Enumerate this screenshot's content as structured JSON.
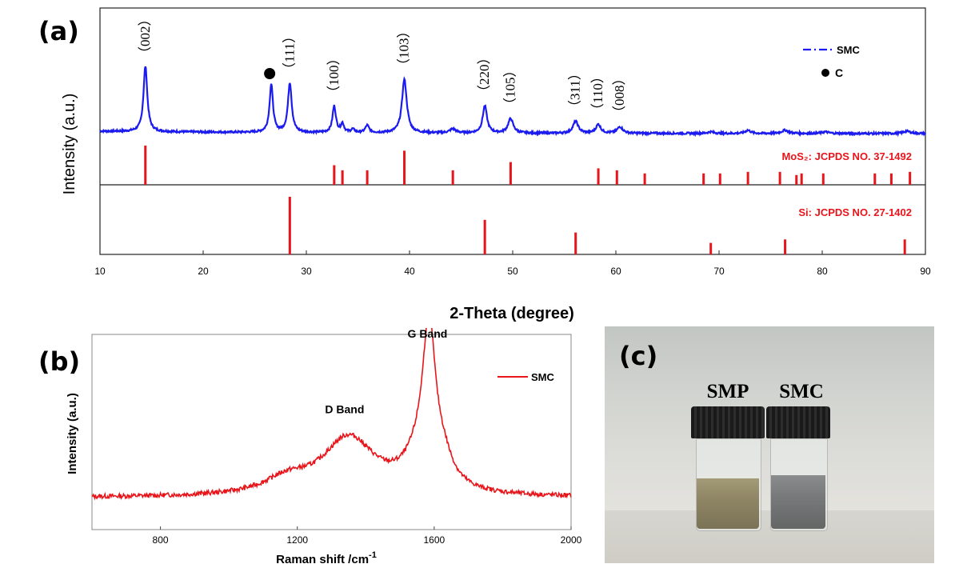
{
  "panels": {
    "a": {
      "letter": "(a)"
    },
    "b": {
      "letter": "(b)"
    },
    "c": {
      "letter": "(c)"
    }
  },
  "chart_data": [
    {
      "id": "xrd",
      "type": "line",
      "xlabel": "2-Theta (degree)",
      "ylabel": "Intensity (a.u.)",
      "xlim": [
        10,
        90
      ],
      "xticks": [
        10,
        20,
        30,
        40,
        50,
        60,
        70,
        80,
        90
      ],
      "grid": false,
      "legend_position": "top-right",
      "legend": [
        {
          "label": "SMC",
          "marker": "dash-dot line",
          "color": "#1b1bf0"
        },
        {
          "label": "C",
          "marker": "filled circle",
          "color": "#000000"
        }
      ],
      "series": [
        {
          "name": "SMC",
          "color": "#1b1bf0",
          "baseline": 3,
          "peaks": [
            {
              "x": 14.4,
              "h": 82,
              "w": 0.22
            },
            {
              "x": 26.6,
              "h": 60,
              "w": 0.2
            },
            {
              "x": 28.4,
              "h": 62,
              "w": 0.22
            },
            {
              "x": 32.7,
              "h": 33,
              "w": 0.2
            },
            {
              "x": 33.5,
              "h": 11,
              "w": 0.18
            },
            {
              "x": 34.5,
              "h": 4,
              "w": 0.2
            },
            {
              "x": 35.9,
              "h": 9,
              "w": 0.22
            },
            {
              "x": 39.5,
              "h": 67,
              "w": 0.28
            },
            {
              "x": 44.2,
              "h": 5,
              "w": 0.35
            },
            {
              "x": 47.3,
              "h": 34,
              "w": 0.25
            },
            {
              "x": 49.8,
              "h": 18,
              "w": 0.3
            },
            {
              "x": 56.1,
              "h": 15,
              "w": 0.3
            },
            {
              "x": 58.3,
              "h": 11,
              "w": 0.28
            },
            {
              "x": 60.4,
              "h": 8,
              "w": 0.32
            },
            {
              "x": 69.2,
              "h": 2,
              "w": 0.35
            },
            {
              "x": 72.8,
              "h": 4,
              "w": 0.3
            },
            {
              "x": 76.4,
              "h": 4,
              "w": 0.4
            },
            {
              "x": 80.3,
              "h": 2,
              "w": 0.4
            },
            {
              "x": 88.2,
              "h": 3,
              "w": 0.4
            }
          ]
        }
      ],
      "peak_labels": [
        {
          "x": 14.4,
          "y": 82,
          "text": "（002）"
        },
        {
          "x": 28.4,
          "y": 62,
          "text": "（111）"
        },
        {
          "x": 32.7,
          "y": 33,
          "text": "（100）"
        },
        {
          "x": 39.5,
          "y": 67,
          "text": "（103）"
        },
        {
          "x": 47.3,
          "y": 34,
          "text": "（220）"
        },
        {
          "x": 49.8,
          "y": 18,
          "text": "（105）"
        },
        {
          "x": 56.1,
          "y": 15,
          "text": "（311）"
        },
        {
          "x": 58.3,
          "y": 11,
          "text": "（110）"
        },
        {
          "x": 60.4,
          "y": 8,
          "text": "（008）"
        }
      ],
      "carbon_marker": {
        "x": 26.6,
        "y": 60
      },
      "reference_patterns": [
        {
          "label": "MoS₂: JCPDS NO. 37-1492",
          "color": "#e8151b",
          "lines": [
            {
              "x": 14.4,
              "i": 1.0
            },
            {
              "x": 32.7,
              "i": 0.5
            },
            {
              "x": 33.5,
              "i": 0.37
            },
            {
              "x": 35.9,
              "i": 0.37
            },
            {
              "x": 39.5,
              "i": 0.87
            },
            {
              "x": 44.2,
              "i": 0.37
            },
            {
              "x": 49.8,
              "i": 0.58
            },
            {
              "x": 58.3,
              "i": 0.42
            },
            {
              "x": 60.1,
              "i": 0.37
            },
            {
              "x": 62.8,
              "i": 0.29
            },
            {
              "x": 68.5,
              "i": 0.29
            },
            {
              "x": 70.1,
              "i": 0.29
            },
            {
              "x": 72.8,
              "i": 0.33
            },
            {
              "x": 75.9,
              "i": 0.33
            },
            {
              "x": 77.5,
              "i": 0.25
            },
            {
              "x": 78.0,
              "i": 0.29
            },
            {
              "x": 80.1,
              "i": 0.29
            },
            {
              "x": 85.1,
              "i": 0.29
            },
            {
              "x": 86.7,
              "i": 0.29
            },
            {
              "x": 88.5,
              "i": 0.33
            }
          ]
        },
        {
          "label": "Si: JCPDS NO. 27-1402",
          "color": "#e8151b",
          "lines": [
            {
              "x": 28.4,
              "i": 1.0
            },
            {
              "x": 47.3,
              "i": 0.6
            },
            {
              "x": 56.1,
              "i": 0.38
            },
            {
              "x": 69.2,
              "i": 0.2
            },
            {
              "x": 76.4,
              "i": 0.26
            },
            {
              "x": 88.0,
              "i": 0.26
            }
          ]
        }
      ]
    },
    {
      "id": "raman",
      "type": "line",
      "xlabel": "Raman shift /cm",
      "xlabel_superscript": "-1",
      "ylabel": "Intensity (a.u.)",
      "xlim": [
        600,
        2000
      ],
      "xticks": [
        800,
        1200,
        1600,
        2000
      ],
      "grid": false,
      "legend_position": "top-right",
      "legend": [
        {
          "label": "SMC",
          "color": "#e8151b"
        }
      ],
      "series": [
        {
          "name": "SMC",
          "color": "#e8151b",
          "baseline": 0.3,
          "peaks": [
            {
              "x": 1350,
              "h": 5.7,
              "w": 95
            },
            {
              "x": 1170,
              "h": 1.4,
              "w": 80
            },
            {
              "x": 1585,
              "h": 14.3,
              "w": 22
            },
            {
              "x": 1560,
              "h": 3.0,
              "w": 55
            },
            {
              "x": 1625,
              "h": 2.2,
              "w": 35
            }
          ]
        }
      ],
      "ylim": [
        0,
        18
      ],
      "annotations": [
        {
          "text": "D Band",
          "x": 1350,
          "y": 8.7
        },
        {
          "text": "G Band",
          "x": 1585,
          "y": 16.2
        }
      ]
    }
  ],
  "photo": {
    "vials": [
      {
        "label": "SMP",
        "powder_color": "#8f8665"
      },
      {
        "label": "SMC",
        "powder_color": "#77797a"
      }
    ]
  }
}
